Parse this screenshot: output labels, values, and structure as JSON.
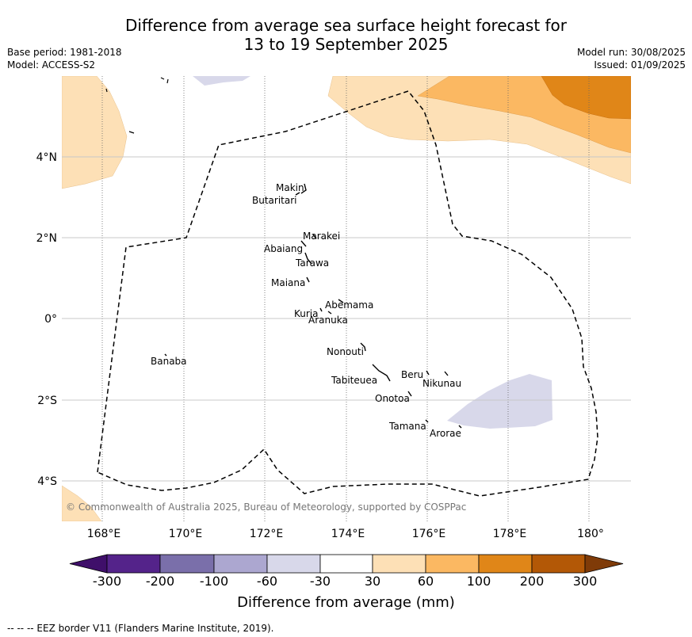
{
  "title_line1": "Difference from average sea surface height forecast for",
  "title_line2": "13 to 19 September 2025",
  "base_period": "Base period: 1981-2018",
  "model": "Model: ACCESS-S2",
  "model_run": "Model run: 30/08/2025",
  "issued": "Issued: 01/09/2025",
  "copyright": "© Commonwealth of Australia 2025, Bureau of Meteorology, supported by COSPPac",
  "lon_labels": [
    "168°E",
    "170°E",
    "172°E",
    "174°E",
    "176°E",
    "178°E",
    "180°"
  ],
  "lat_labels": [
    "4°N",
    "2°N",
    "0°",
    "2°S",
    "4°S"
  ],
  "islands": [
    "Makin",
    "Butaritari",
    "Marakei",
    "Abaiang",
    "Tarawa",
    "Maiana",
    "Abemama",
    "Kuria",
    "Aranuka",
    "Nonouti",
    "Banaba",
    "Beru",
    "Nikunau",
    "Tabiteuea",
    "Onotoa",
    "Tamana",
    "Arorae"
  ],
  "colorbar": {
    "title": "Difference from average (mm)",
    "tick_labels": [
      "-300",
      "-200",
      "-100",
      "-60",
      "-30",
      "30",
      "60",
      "100",
      "200",
      "300"
    ],
    "colors": [
      "#3f0f6a",
      "#54238a",
      "#7a6faa",
      "#aca7d0",
      "#d8d8ea",
      "#ffffff",
      "#fde0b6",
      "#fbb862",
      "#e08618",
      "#b35806",
      "#7f3b08"
    ]
  },
  "footer": "--  --  -- EEZ border V11 (Flanders Marine Institute, 2019)."
}
